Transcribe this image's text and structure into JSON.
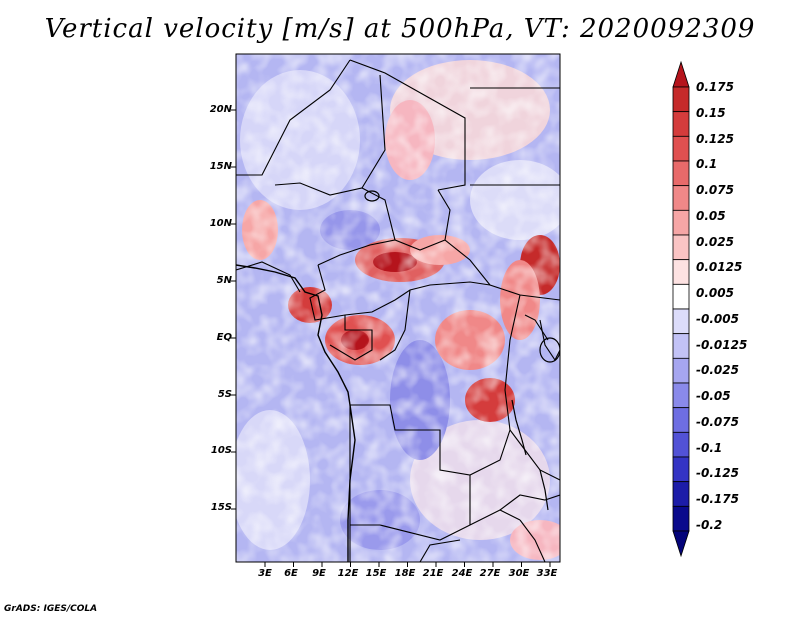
{
  "title": "Vertical velocity [m/s] at 500hPa, VT: 2020092309",
  "footer": "GrADS: IGES/COLA",
  "chart_data": {
    "type": "heatmap",
    "title": "Vertical velocity [m/s] at 500hPa, VT: 2020092309",
    "variable": "Vertical velocity",
    "units": "m/s",
    "level": "500hPa",
    "valid_time": "2020092309",
    "lat_ticks": [
      "20N",
      "15N",
      "10N",
      "5N",
      "EQ",
      "5S",
      "10S",
      "15S"
    ],
    "lon_ticks": [
      "3E",
      "6E",
      "9E",
      "12E",
      "15E",
      "18E",
      "21E",
      "24E",
      "27E",
      "30E",
      "33E"
    ],
    "lat_values": [
      20,
      15,
      10,
      5,
      0,
      -5,
      -10,
      -15
    ],
    "lon_values": [
      3,
      6,
      9,
      12,
      15,
      18,
      21,
      24,
      27,
      30,
      33
    ],
    "colorbar": {
      "labels": [
        "0.175",
        "0.15",
        "0.125",
        "0.1",
        "0.075",
        "0.05",
        "0.025",
        "0.0125",
        "0.005",
        "-0.005",
        "-0.0125",
        "-0.025",
        "-0.05",
        "-0.075",
        "-0.1",
        "-0.125",
        "-0.175",
        "-0.2"
      ],
      "colors": [
        "#b5141c",
        "#c52a2a",
        "#d43c3c",
        "#e05050",
        "#e86a6a",
        "#f08888",
        "#f6a6a6",
        "#fac4c4",
        "#fde2e2",
        "#ffffff",
        "#dcdcfa",
        "#c2c2f6",
        "#a6a6f0",
        "#8a8aea",
        "#6e6ee2",
        "#5252d6",
        "#3434c4",
        "#1c1ca8",
        "#0a0a8c",
        "#04047a"
      ]
    }
  }
}
